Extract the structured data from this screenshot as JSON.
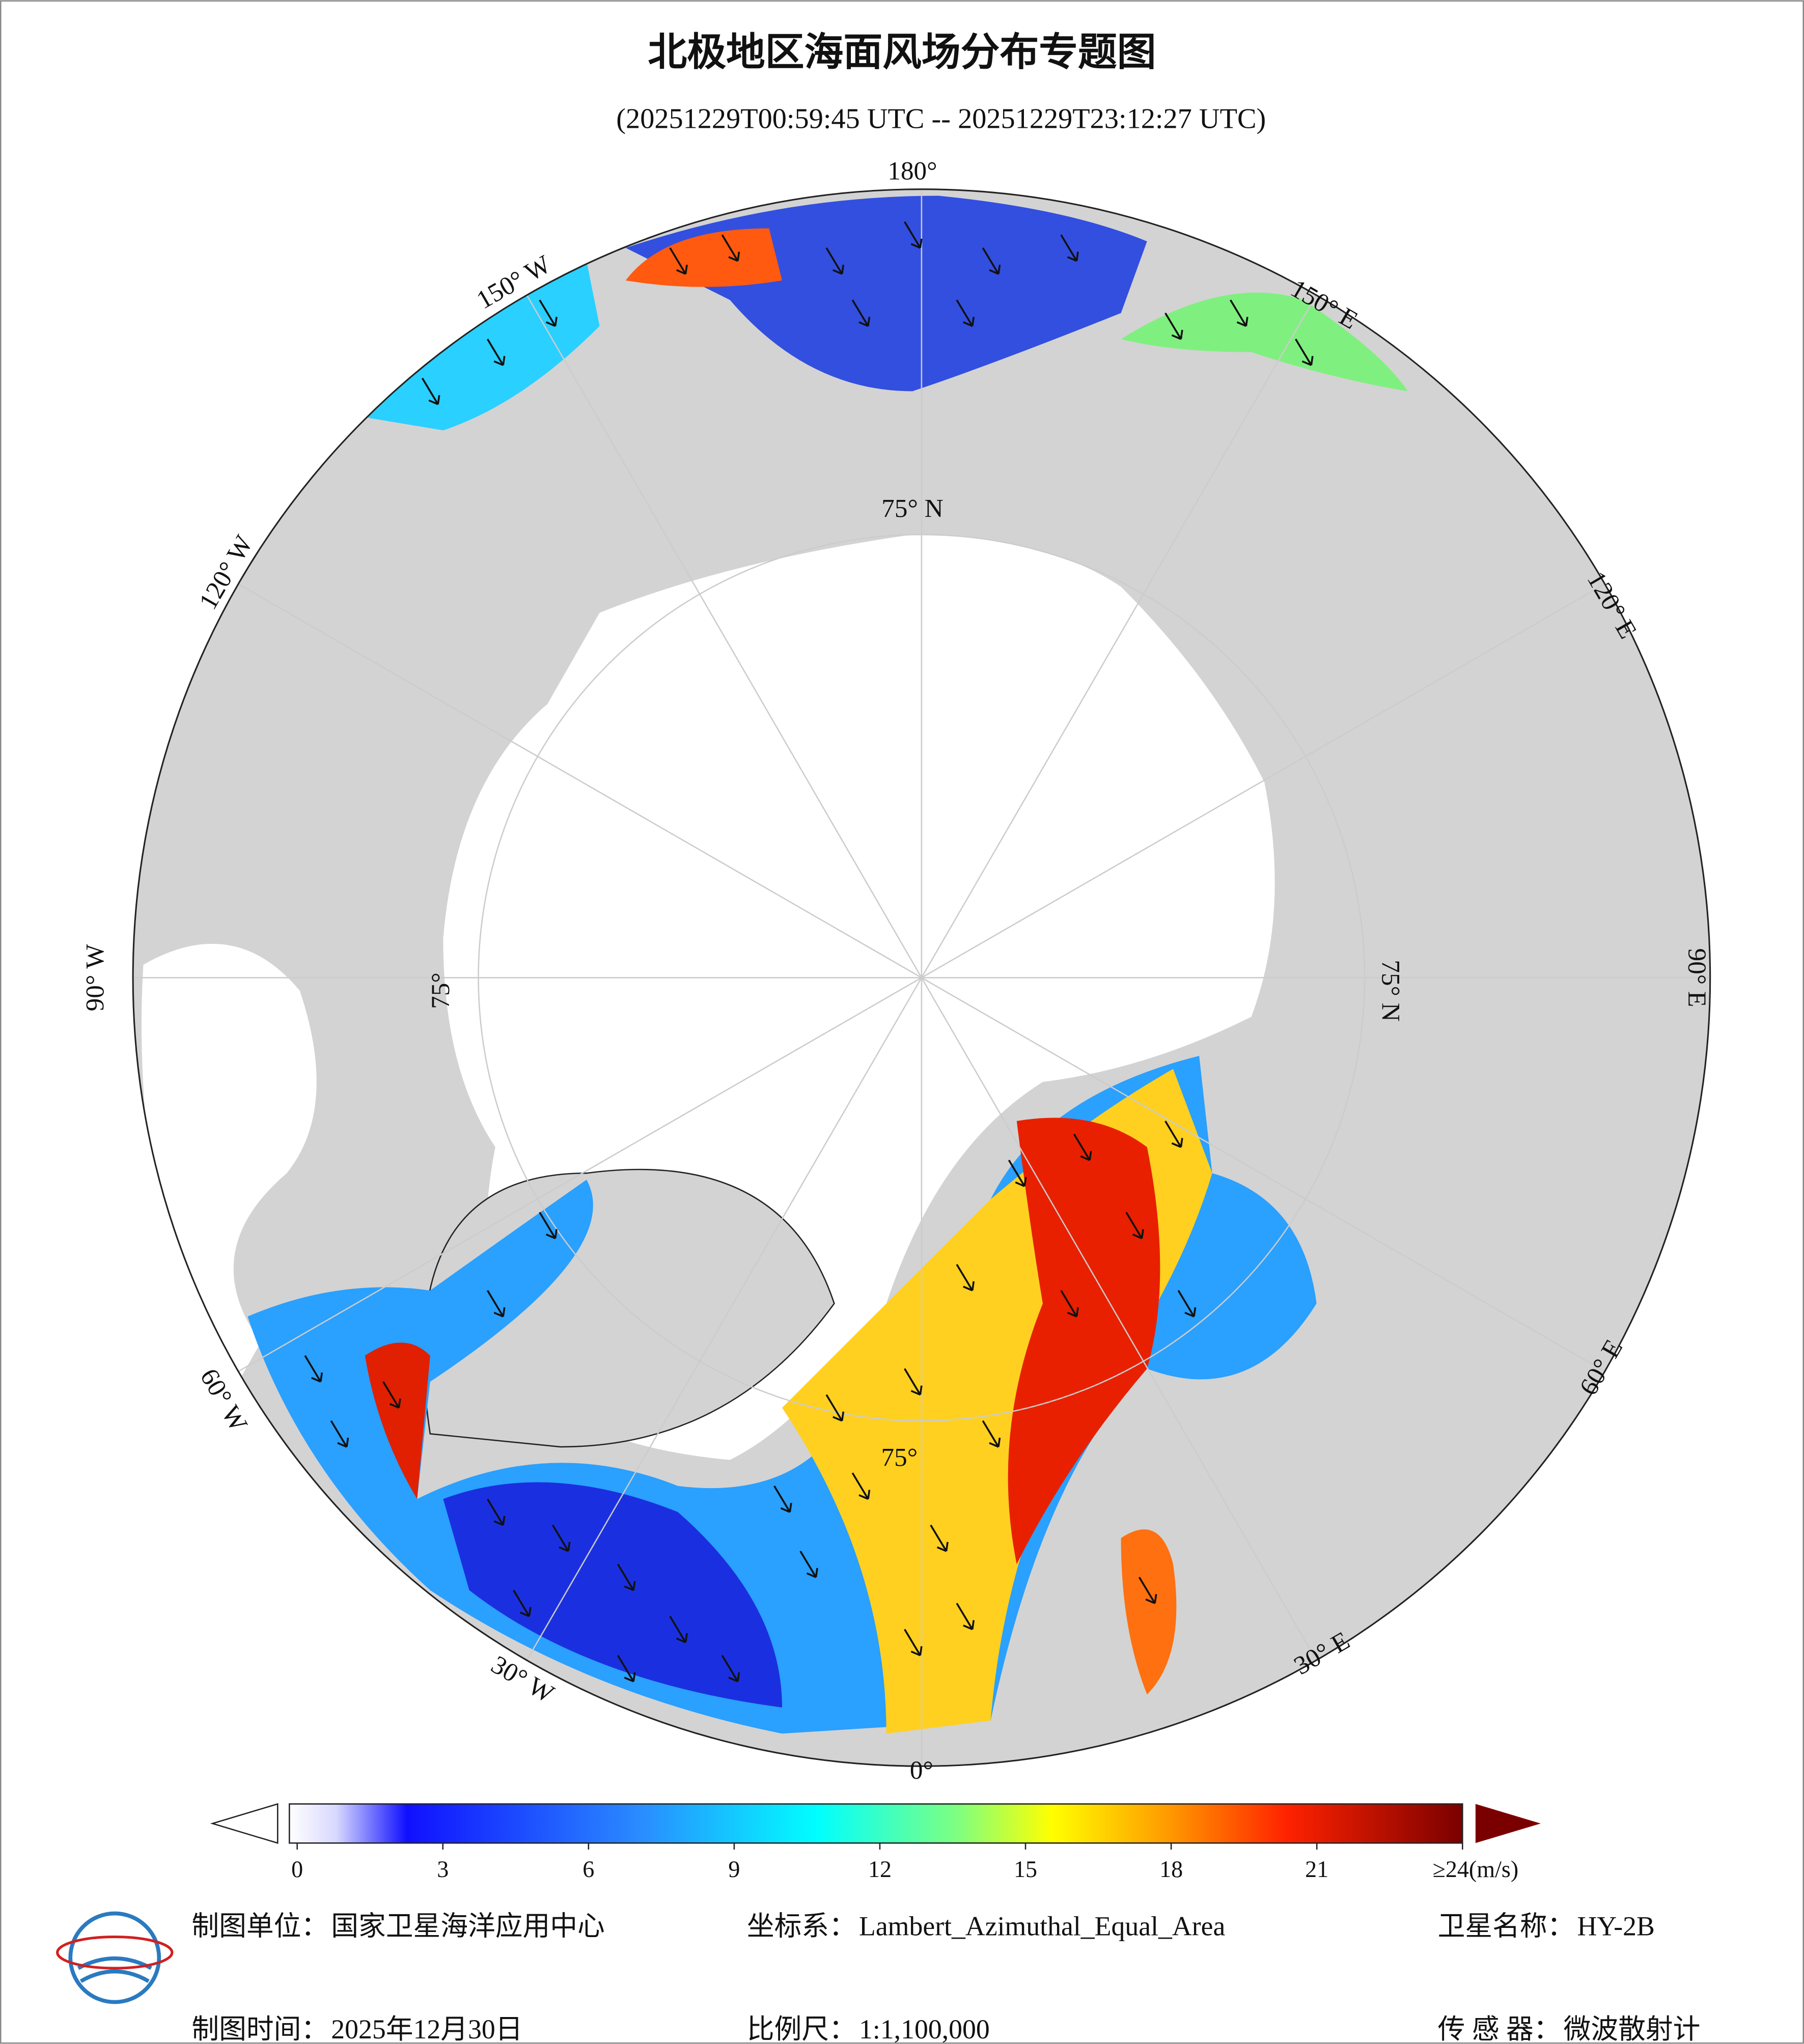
{
  "header": {
    "title": "北极地区海面风场分布专题图",
    "subtitle": "(20251229T00:59:45 UTC -- 20251229T23:12:27 UTC)"
  },
  "map": {
    "longitude_labels": [
      "180°",
      "150° W",
      "120° W",
      "90° W",
      "60° W",
      "30° W",
      "0°",
      "30° E",
      "60° E",
      "90° E",
      "120° E",
      "150° E"
    ],
    "latitude_labels": [
      "75° N",
      "75° N",
      "75°",
      "75°"
    ]
  },
  "colorbar": {
    "range": [
      0,
      24
    ],
    "ticks": [
      0,
      3,
      6,
      9,
      12,
      15,
      18,
      21,
      {
        "value": 24,
        "label": "≥24(m/s)"
      }
    ]
  },
  "footer": {
    "items": [
      {
        "key": "制图单位：",
        "value": "国家卫星海洋应用中心"
      },
      {
        "key": "坐标系：",
        "value": "Lambert_Azimuthal_Equal_Area"
      },
      {
        "key": "卫星名称：",
        "value": "HY-2B"
      },
      {
        "key": "制图时间：",
        "value": "2025年12月30日"
      },
      {
        "key": "比例尺：",
        "value": "1:1,100,000"
      },
      {
        "key": "传 感 器：",
        "value": "微波散射计"
      }
    ]
  }
}
